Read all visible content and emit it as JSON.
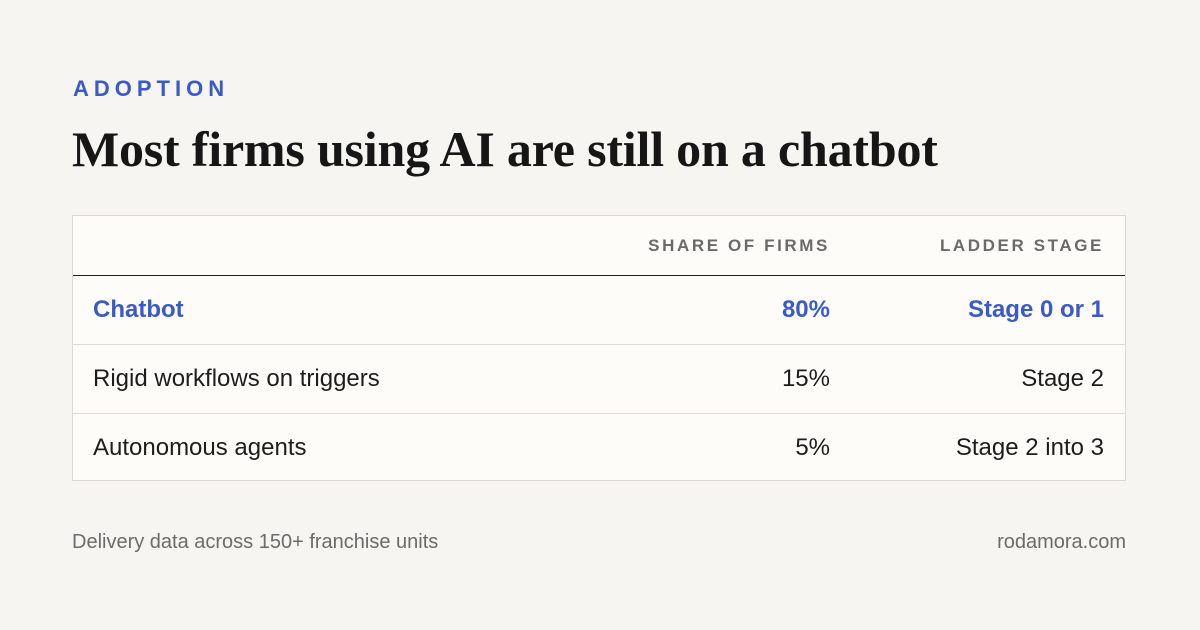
{
  "header": {
    "eyebrow": "ADOPTION",
    "title": "Most firms using AI are still on a chatbot"
  },
  "table": {
    "columns": [
      "",
      "SHARE OF FIRMS",
      "LADDER STAGE"
    ],
    "rows": [
      {
        "label": "Chatbot",
        "share": "80%",
        "stage": "Stage 0 or 1",
        "highlighted": true
      },
      {
        "label": "Rigid workflows on triggers",
        "share": "15%",
        "stage": "Stage 2",
        "highlighted": false
      },
      {
        "label": "Autonomous agents",
        "share": "5%",
        "stage": "Stage 2 into 3",
        "highlighted": false
      }
    ]
  },
  "footer": {
    "source": "Delivery data across 150+ franchise units",
    "site": "rodamora.com"
  },
  "colors": {
    "accent": "#3a5bc7",
    "background": "#f6f5f1",
    "table_background": "#fdfcf8",
    "text": "#1b1b1b",
    "muted": "#6b6b6b"
  }
}
